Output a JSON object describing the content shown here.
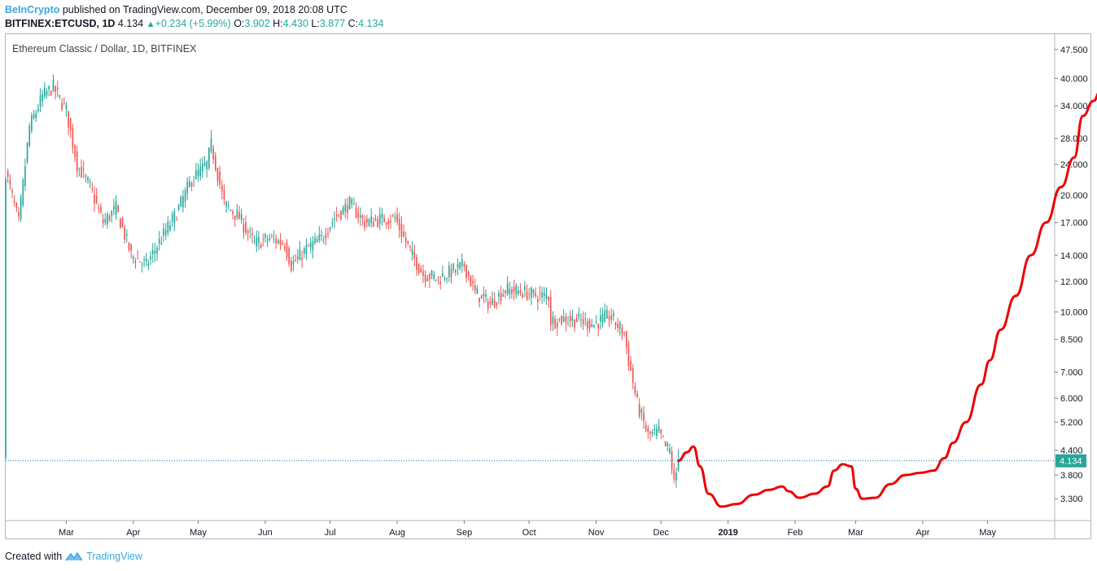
{
  "header": {
    "author": "BeInCrypto",
    "published_text": "published on TradingView.com, December 09, 2018 20:08 UTC",
    "symbol": "BITFINEX:ETCUSD, 1D",
    "last": "4.134",
    "change": "+0.234 (+5.99%)",
    "open_label": "O:",
    "open": "3.902",
    "high_label": "H:",
    "high": "4.430",
    "low_label": "L:",
    "low": "3.877",
    "close_label": "C:",
    "close": "4.134"
  },
  "footer": {
    "created_with": "Created with",
    "brand": "TradingView"
  },
  "colors": {
    "up": "#26a69a",
    "down": "#ef5350",
    "projection": "#ee0000",
    "price_line": "#1e7ca8"
  },
  "chart_data": {
    "type": "candlestick",
    "title": "Ethereum Classic / Dollar, 1D, BITFINEX",
    "y_scale": "log",
    "ylim": [
      2.9,
      52
    ],
    "y_ticks": [
      "47.500",
      "40.000",
      "34.000",
      "28.000",
      "24.000",
      "20.000",
      "17.000",
      "14.000",
      "12.000",
      "10.000",
      "8.500",
      "7.000",
      "6.000",
      "5.200",
      "4.400",
      "3.800",
      "3.300"
    ],
    "x_ticks": [
      "Mar",
      "Apr",
      "May",
      "Jun",
      "Jul",
      "Aug",
      "Sep",
      "Oct",
      "Nov",
      "Dec",
      "2019",
      "Feb",
      "Mar",
      "Apr",
      "May"
    ],
    "x_range": [
      "2018-02-01",
      "2019-06-01"
    ],
    "price_line": {
      "value": 4.134,
      "label": "4.134"
    },
    "price_anchors": [
      [
        "2018-02-01",
        23
      ],
      [
        "2018-02-07",
        17
      ],
      [
        "2018-02-12",
        30
      ],
      [
        "2018-02-18",
        36
      ],
      [
        "2018-02-23",
        38
      ],
      [
        "2018-03-01",
        33
      ],
      [
        "2018-03-06",
        24
      ],
      [
        "2018-03-12",
        21
      ],
      [
        "2018-03-18",
        17
      ],
      [
        "2018-03-24",
        18.5
      ],
      [
        "2018-03-31",
        14
      ],
      [
        "2018-04-07",
        13.2
      ],
      [
        "2018-04-14",
        15.5
      ],
      [
        "2018-04-21",
        18
      ],
      [
        "2018-04-28",
        22
      ],
      [
        "2018-05-05",
        24
      ],
      [
        "2018-05-07",
        27
      ],
      [
        "2018-05-13",
        19
      ],
      [
        "2018-05-20",
        17.5
      ],
      [
        "2018-05-27",
        15
      ],
      [
        "2018-06-03",
        15.5
      ],
      [
        "2018-06-10",
        15
      ],
      [
        "2018-06-13",
        13.2
      ],
      [
        "2018-06-20",
        14.5
      ],
      [
        "2018-06-27",
        15.5
      ],
      [
        "2018-07-03",
        17.5
      ],
      [
        "2018-07-10",
        19
      ],
      [
        "2018-07-17",
        17
      ],
      [
        "2018-07-24",
        17.3
      ],
      [
        "2018-07-31",
        17.5
      ],
      [
        "2018-08-03",
        16
      ],
      [
        "2018-08-08",
        14
      ],
      [
        "2018-08-13",
        12.5
      ],
      [
        "2018-08-20",
        12.2
      ],
      [
        "2018-08-27",
        12.8
      ],
      [
        "2018-09-01",
        13.2
      ],
      [
        "2018-09-06",
        11.2
      ],
      [
        "2018-09-13",
        10.5
      ],
      [
        "2018-09-20",
        11.4
      ],
      [
        "2018-09-27",
        11.3
      ],
      [
        "2018-10-05",
        11
      ],
      [
        "2018-10-10",
        11
      ],
      [
        "2018-10-11",
        9.5
      ],
      [
        "2018-10-18",
        9.6
      ],
      [
        "2018-10-25",
        9.5
      ],
      [
        "2018-10-31",
        9.3
      ],
      [
        "2018-11-07",
        9.8
      ],
      [
        "2018-11-14",
        8.8
      ],
      [
        "2018-11-16",
        7.5
      ],
      [
        "2018-11-20",
        5.8
      ],
      [
        "2018-11-25",
        4.8
      ],
      [
        "2018-11-30",
        4.9
      ],
      [
        "2018-12-03",
        4.5
      ],
      [
        "2018-12-05",
        4.4
      ],
      [
        "2018-12-07",
        3.6
      ],
      [
        "2018-12-09",
        4.134
      ]
    ],
    "projection": [
      [
        "2018-12-09",
        4.134
      ],
      [
        "2018-12-13",
        4.35
      ],
      [
        "2018-12-16",
        4.5
      ],
      [
        "2018-12-19",
        4.0
      ],
      [
        "2018-12-23",
        3.4
      ],
      [
        "2018-12-29",
        3.15
      ],
      [
        "2019-01-05",
        3.2
      ],
      [
        "2019-01-13",
        3.38
      ],
      [
        "2019-01-20",
        3.48
      ],
      [
        "2019-01-26",
        3.55
      ],
      [
        "2019-01-29",
        3.45
      ],
      [
        "2019-02-03",
        3.32
      ],
      [
        "2019-02-10",
        3.4
      ],
      [
        "2019-02-16",
        3.55
      ],
      [
        "2019-02-19",
        3.9
      ],
      [
        "2019-02-23",
        4.05
      ],
      [
        "2019-02-27",
        4.0
      ],
      [
        "2019-03-01",
        3.5
      ],
      [
        "2019-03-04",
        3.3
      ],
      [
        "2019-03-10",
        3.32
      ],
      [
        "2019-03-17",
        3.6
      ],
      [
        "2019-03-24",
        3.8
      ],
      [
        "2019-03-31",
        3.85
      ],
      [
        "2019-04-06",
        3.9
      ],
      [
        "2019-04-11",
        4.2
      ],
      [
        "2019-04-15",
        4.6
      ],
      [
        "2019-04-21",
        5.2
      ],
      [
        "2019-04-28",
        6.5
      ],
      [
        "2019-05-02",
        7.5
      ],
      [
        "2019-05-07",
        9.0
      ],
      [
        "2019-05-14",
        11
      ],
      [
        "2019-05-21",
        14
      ],
      [
        "2019-05-28",
        17
      ],
      [
        "2019-06-04",
        21
      ],
      [
        "2019-06-10",
        25
      ],
      [
        "2019-06-14",
        32
      ],
      [
        "2019-06-19",
        35
      ],
      [
        "2019-06-22",
        37
      ]
    ]
  }
}
